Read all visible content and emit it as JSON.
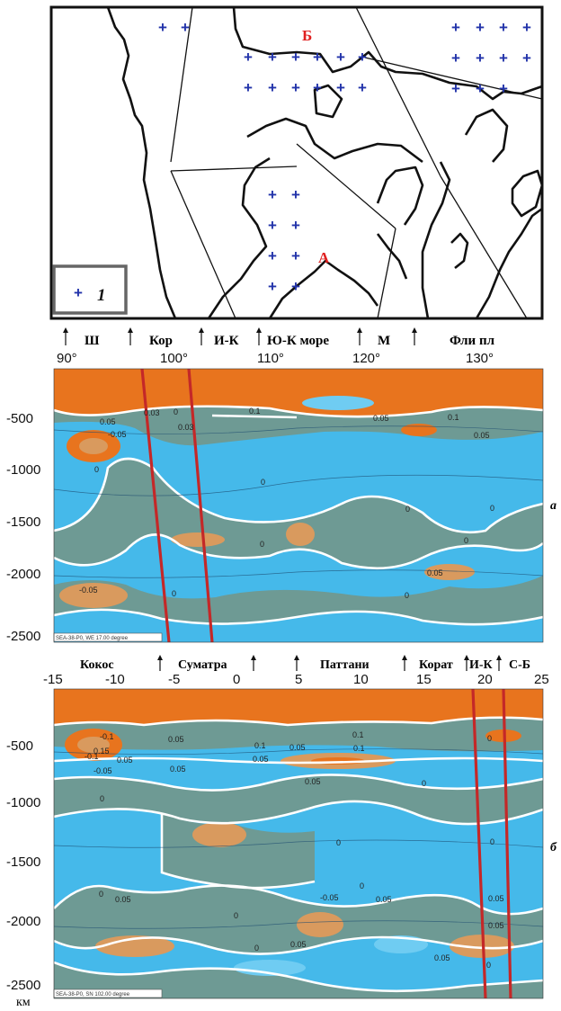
{
  "map": {
    "letter_b": "Б",
    "letter_a": "А",
    "legend_label": "1"
  },
  "regions_a": [
    "Ш",
    "Кор",
    "И-К",
    "Ю-К море",
    "М",
    "Фли пл"
  ],
  "regions_b": [
    "Кокос",
    "Суматра",
    "Паттани",
    "Корат",
    "И-К",
    "С-Б"
  ],
  "section_labels": {
    "a": "а",
    "b": "б"
  },
  "unit_label": "км",
  "legend_a": "SEA-38-P0, WE 17.00 degree",
  "legend_b": "SEA-38-P0, SN 102.00 degree",
  "colors": {
    "orange": "#E8741E",
    "light_orange": "#D99A5E",
    "gray_green": "#6E9A94",
    "cyan": "#45B9EA",
    "light_cyan": "#6FCCF2",
    "red_line": "#C42828",
    "plus_blue": "#2233AA",
    "letter_red": "#E02020"
  },
  "chart_data": [
    {
      "type": "heatmap",
      "panel": "а",
      "x_ticks": [
        "90°",
        "100°",
        "110°",
        "120°",
        "130°"
      ],
      "y_ticks": [
        "-500",
        "-1000",
        "-1500",
        "-2000",
        "-2500"
      ],
      "xlim": [
        90,
        135
      ],
      "ylim": [
        -2550,
        -100
      ],
      "contour_labels": [
        "0.03",
        "0",
        "0.05",
        "0.1",
        "-0.05",
        "0.05",
        "0.1",
        "0.05",
        "0.03",
        "0",
        "0",
        "0",
        "0",
        "0",
        "0",
        "-0.05",
        "0",
        "0",
        "0.05"
      ]
    },
    {
      "type": "heatmap",
      "panel": "б",
      "x_ticks": [
        "-15",
        "-10",
        "-5",
        "0",
        "5",
        "10",
        "15",
        "20",
        "25"
      ],
      "y_ticks": [
        "-500",
        "-1000",
        "-1500",
        "-2000",
        "-2500"
      ],
      "xlim": [
        -15,
        25
      ],
      "ylim": [
        -2550,
        -100
      ],
      "contour_labels": [
        "-0.1",
        "0.15",
        "-0.1",
        "-0.05",
        "0.05",
        "0.05",
        "0.05",
        "0.1",
        "0.05",
        "0.1",
        "0.1",
        "0.05",
        "0.05",
        "0",
        "0",
        "0",
        "0",
        "0.05",
        "0",
        "-0.05",
        "0.05",
        "0",
        "0",
        "0.05",
        "0.05",
        "0",
        "0.05",
        "0.05",
        "0",
        "0"
      ]
    }
  ]
}
